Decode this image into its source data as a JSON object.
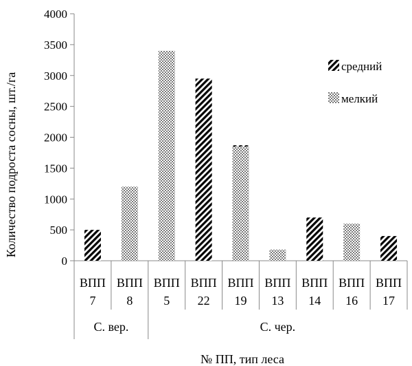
{
  "chart_data": {
    "type": "bar",
    "title": "",
    "ylabel": "Количество подроста сосны, шт./га",
    "xlabel": "№ ПП, тип леса",
    "ylim": [
      0,
      4000
    ],
    "yticks": [
      0,
      500,
      1000,
      1500,
      2000,
      2500,
      3000,
      3500,
      4000
    ],
    "grid": false,
    "legend_position": "right",
    "categories": [
      {
        "name": "ВПП",
        "number": "7"
      },
      {
        "name": "ВПП",
        "number": "8"
      },
      {
        "name": "ВПП",
        "number": "5"
      },
      {
        "name": "ВПП",
        "number": "22"
      },
      {
        "name": "ВПП",
        "number": "19"
      },
      {
        "name": "ВПП",
        "number": "13"
      },
      {
        "name": "ВПП",
        "number": "14"
      },
      {
        "name": "ВПП",
        "number": "16"
      },
      {
        "name": "ВПП",
        "number": "17"
      }
    ],
    "groups": [
      {
        "label": "С. вер.",
        "span": 2
      },
      {
        "label": "С. чер.",
        "span": 7
      }
    ],
    "series": [
      {
        "name": "средний",
        "pattern": "diagonal-stripes",
        "color": "#000000",
        "values": [
          500,
          null,
          null,
          2950,
          1870,
          null,
          700,
          null,
          400
        ]
      },
      {
        "name": "мелкий",
        "pattern": "crosshatch-dots",
        "color": "#000000",
        "values": [
          null,
          1200,
          3400,
          null,
          1850,
          180,
          null,
          600,
          null
        ]
      }
    ]
  }
}
